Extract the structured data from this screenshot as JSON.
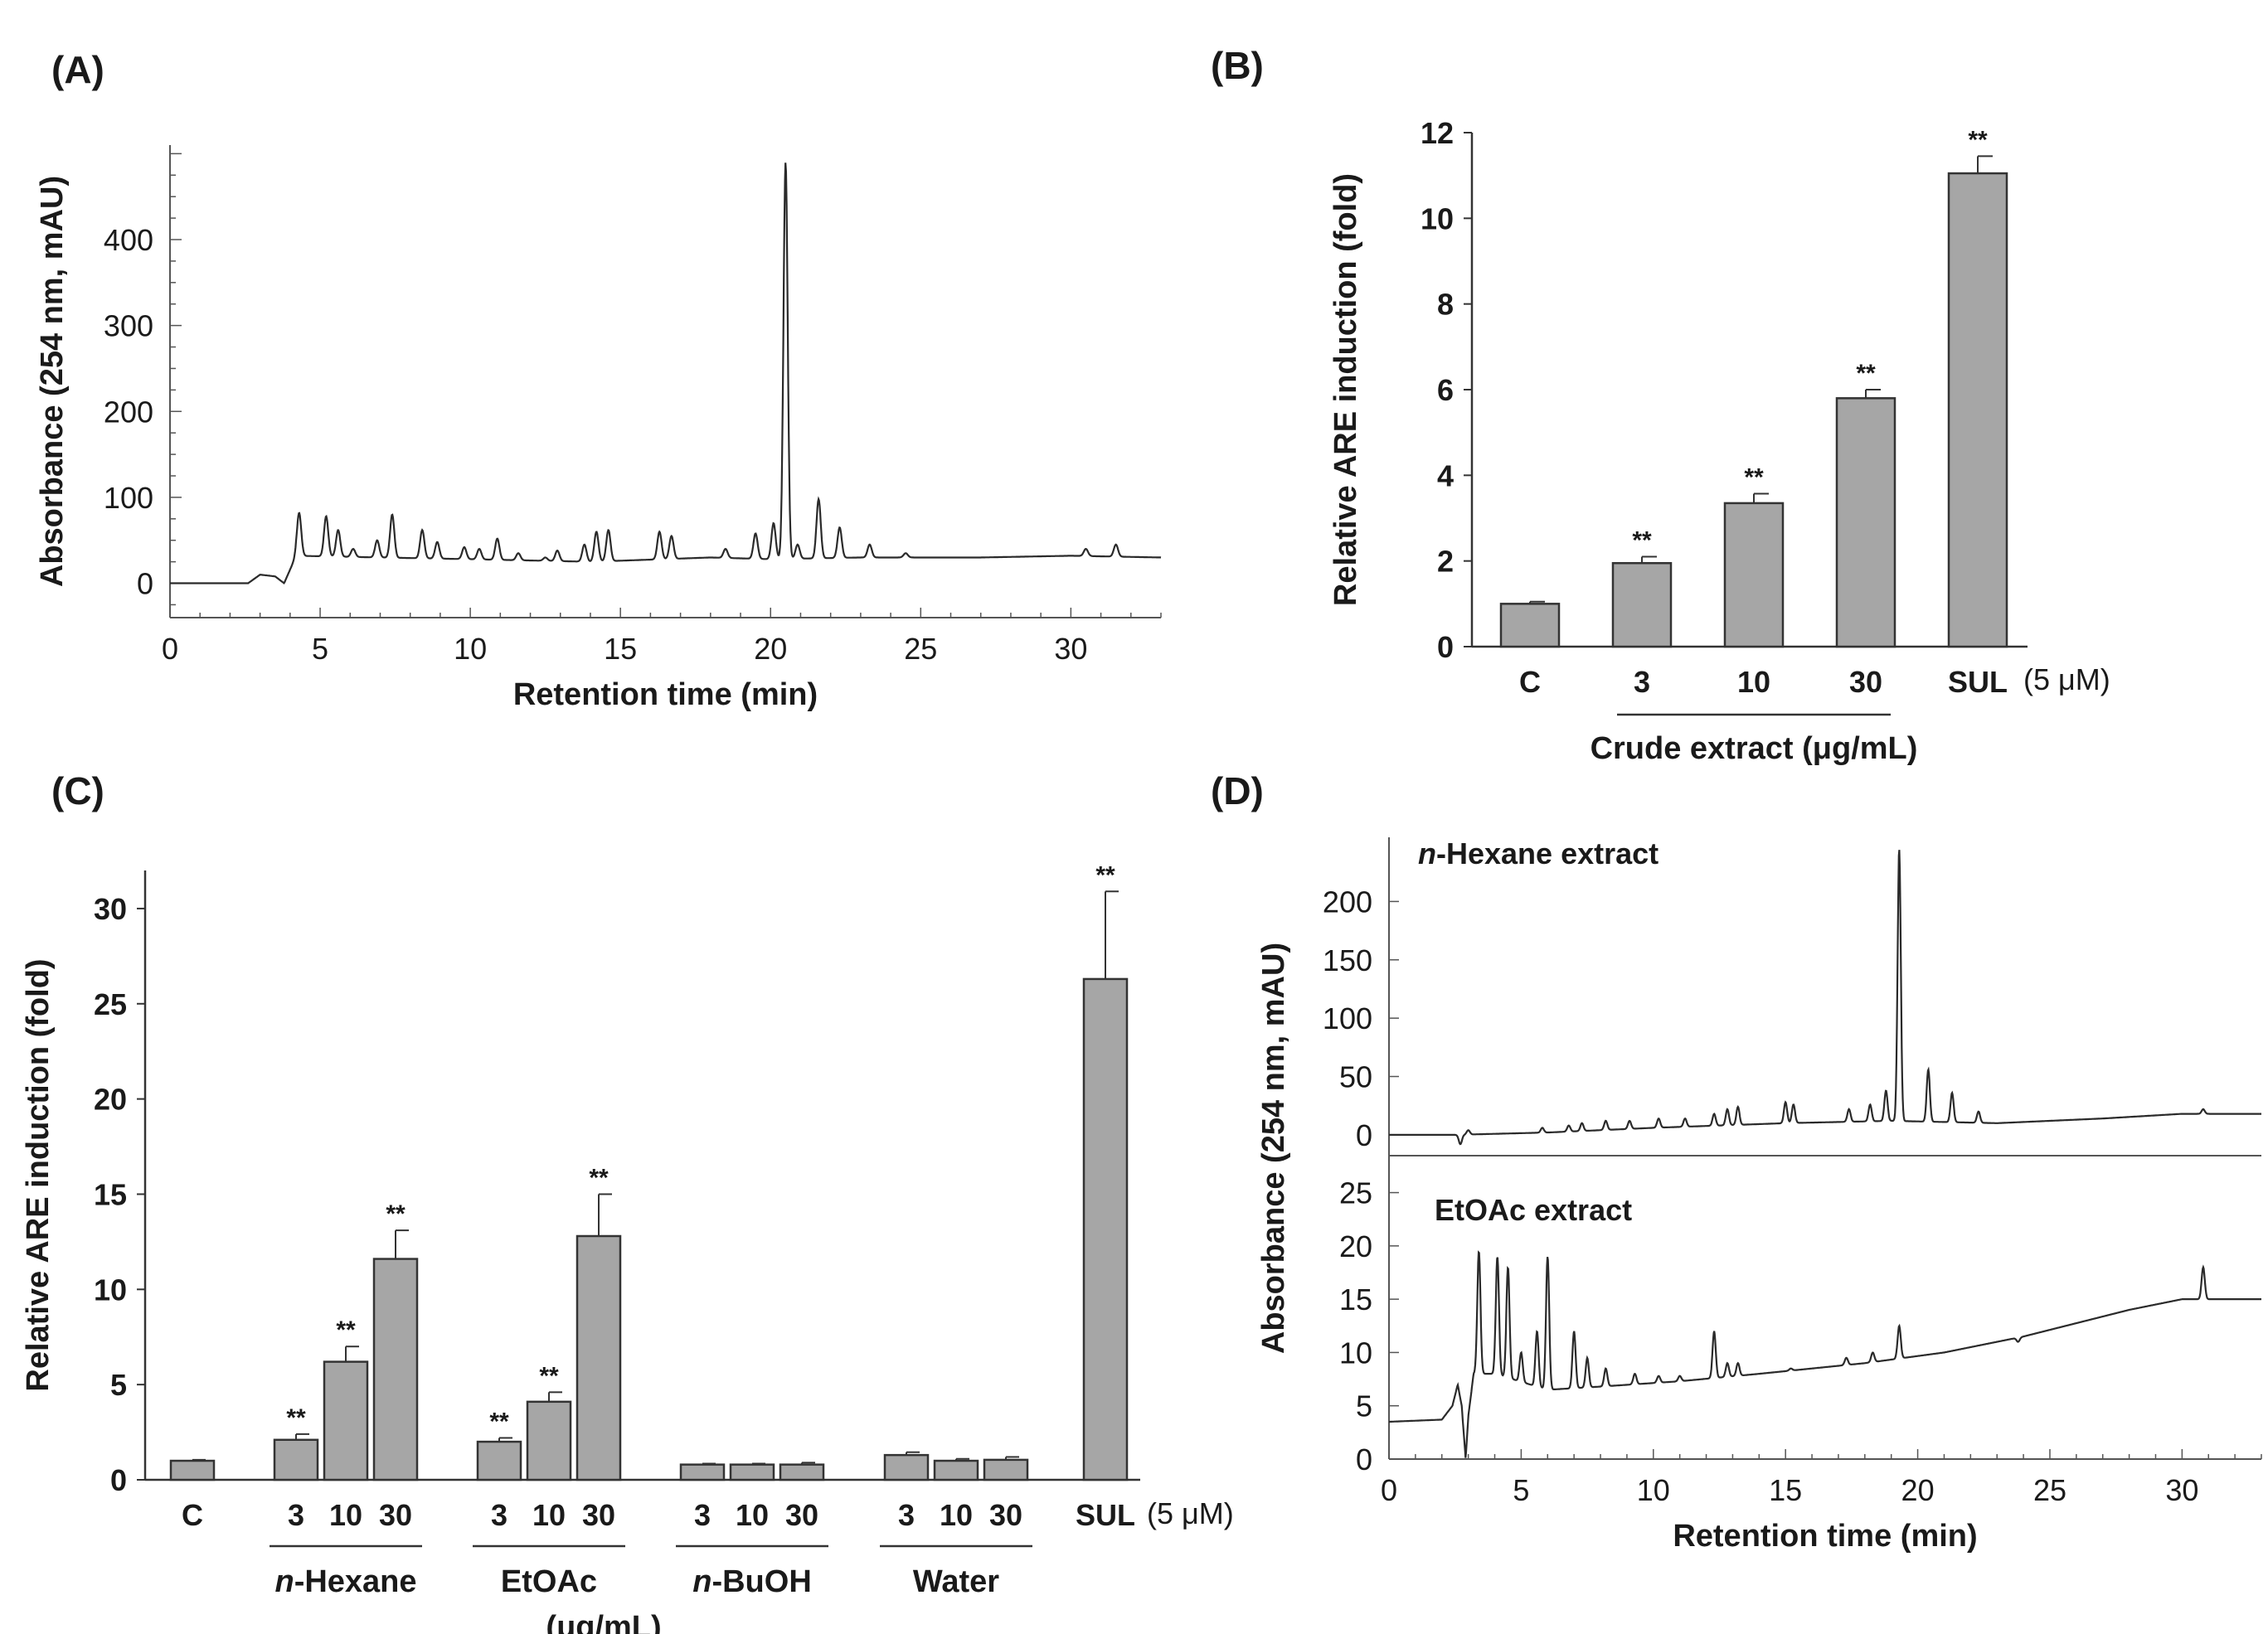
{
  "chart_data": [
    {
      "panel": "(A)",
      "type": "line",
      "xlabel": "Retention time (min)",
      "ylabel": "Absorbance (254 nm, mAU)",
      "xlim": [
        0,
        33
      ],
      "ylim": [
        -40,
        510
      ],
      "xticks": [
        0,
        5,
        10,
        15,
        20,
        25,
        30
      ],
      "yticks": [
        0,
        100,
        200,
        300,
        400
      ],
      "baseline": [
        [
          0,
          0
        ],
        [
          2.6,
          0
        ],
        [
          3.0,
          10
        ],
        [
          3.5,
          8
        ],
        [
          3.8,
          0
        ],
        [
          4.2,
          32
        ],
        [
          7,
          30
        ],
        [
          10,
          28
        ],
        [
          14,
          25
        ],
        [
          18,
          30
        ],
        [
          20,
          28
        ],
        [
          23,
          30
        ],
        [
          27,
          30
        ],
        [
          30,
          32
        ],
        [
          33,
          30
        ]
      ],
      "peaks": [
        {
          "x": 4.3,
          "y": 82
        },
        {
          "x": 5.2,
          "y": 78
        },
        {
          "x": 5.6,
          "y": 62
        },
        {
          "x": 6.1,
          "y": 40
        },
        {
          "x": 6.9,
          "y": 50
        },
        {
          "x": 7.4,
          "y": 80
        },
        {
          "x": 8.4,
          "y": 62
        },
        {
          "x": 8.9,
          "y": 48
        },
        {
          "x": 9.8,
          "y": 42
        },
        {
          "x": 10.3,
          "y": 40
        },
        {
          "x": 10.9,
          "y": 52
        },
        {
          "x": 11.6,
          "y": 35
        },
        {
          "x": 12.5,
          "y": 30
        },
        {
          "x": 12.9,
          "y": 38
        },
        {
          "x": 13.8,
          "y": 45
        },
        {
          "x": 14.2,
          "y": 60
        },
        {
          "x": 14.6,
          "y": 62
        },
        {
          "x": 16.3,
          "y": 60
        },
        {
          "x": 16.7,
          "y": 55
        },
        {
          "x": 18.5,
          "y": 40
        },
        {
          "x": 19.5,
          "y": 58
        },
        {
          "x": 20.1,
          "y": 70
        },
        {
          "x": 20.5,
          "y": 490
        },
        {
          "x": 20.9,
          "y": 45
        },
        {
          "x": 21.6,
          "y": 98
        },
        {
          "x": 22.3,
          "y": 65
        },
        {
          "x": 23.3,
          "y": 45
        },
        {
          "x": 24.5,
          "y": 35
        },
        {
          "x": 30.5,
          "y": 40
        },
        {
          "x": 31.5,
          "y": 45
        }
      ]
    },
    {
      "panel": "(B)",
      "type": "bar",
      "categories": [
        "C",
        "3",
        "10",
        "30",
        "SUL"
      ],
      "values": [
        1.0,
        1.95,
        3.35,
        5.8,
        11.05
      ],
      "errors": [
        0.05,
        0.15,
        0.22,
        0.2,
        0.4
      ],
      "significance": [
        "",
        "**",
        "**",
        "**",
        "**"
      ],
      "ylabel": "Relative ARE induction (fold)",
      "ylim": [
        0,
        12
      ],
      "yticks": [
        0,
        2,
        4,
        6,
        8,
        10,
        12
      ],
      "group_label": "Crude extract (μg/mL)",
      "sul_unit": "(5 μM)"
    },
    {
      "panel": "(C)",
      "type": "bar",
      "categories": [
        "C",
        "3",
        "10",
        "30",
        "3",
        "10",
        "30",
        "3",
        "10",
        "30",
        "3",
        "10",
        "30",
        "SUL"
      ],
      "values": [
        1.0,
        2.1,
        6.2,
        11.6,
        2.0,
        4.1,
        12.8,
        0.8,
        0.8,
        0.8,
        1.3,
        1.0,
        1.05,
        26.3
      ],
      "errors": [
        0.05,
        0.3,
        0.8,
        1.5,
        0.2,
        0.5,
        2.2,
        0.05,
        0.05,
        0.1,
        0.15,
        0.1,
        0.15,
        4.6
      ],
      "significance": [
        "",
        "**",
        "**",
        "**",
        "**",
        "**",
        "**",
        "",
        "",
        "",
        "",
        "",
        "",
        "**"
      ],
      "groups": [
        "n-Hexane",
        "EtOAc",
        "n-BuOH",
        "Water"
      ],
      "ylabel": "Relative ARE induction  (fold)",
      "ylim": [
        0,
        32
      ],
      "yticks": [
        0,
        5,
        10,
        15,
        20,
        25,
        30
      ],
      "unit_label": "(μg/mL)",
      "sul_unit": "(5 μM)"
    },
    {
      "panel": "(D)",
      "type": "line",
      "xlabel": "Retention time (min)",
      "ylabel": "Absorbance (254 nm, mAU)",
      "xlim": [
        0,
        33
      ],
      "xticks": [
        0,
        5,
        10,
        15,
        20,
        25,
        30
      ],
      "subplots": [
        {
          "name": "n-Hexane extract",
          "ylim": [
            -15,
            255
          ],
          "yticks": [
            0,
            50,
            100,
            150,
            200
          ],
          "baseline": [
            [
              0,
              0
            ],
            [
              2.5,
              0
            ],
            [
              6,
              2
            ],
            [
              10,
              6
            ],
            [
              15,
              10
            ],
            [
              19,
              12
            ],
            [
              23,
              10
            ],
            [
              27,
              14
            ],
            [
              30,
              18
            ],
            [
              33,
              18
            ]
          ],
          "peaks": [
            {
              "x": 2.7,
              "y": -8
            },
            {
              "x": 3.0,
              "y": 4
            },
            {
              "x": 5.8,
              "y": 6
            },
            {
              "x": 6.8,
              "y": 8
            },
            {
              "x": 7.3,
              "y": 10
            },
            {
              "x": 8.2,
              "y": 12
            },
            {
              "x": 9.1,
              "y": 12
            },
            {
              "x": 10.2,
              "y": 14
            },
            {
              "x": 11.2,
              "y": 14
            },
            {
              "x": 12.3,
              "y": 18
            },
            {
              "x": 12.8,
              "y": 22
            },
            {
              "x": 13.2,
              "y": 24
            },
            {
              "x": 15.0,
              "y": 28
            },
            {
              "x": 15.3,
              "y": 26
            },
            {
              "x": 17.4,
              "y": 22
            },
            {
              "x": 18.2,
              "y": 26
            },
            {
              "x": 18.8,
              "y": 38
            },
            {
              "x": 19.3,
              "y": 245
            },
            {
              "x": 20.4,
              "y": 56
            },
            {
              "x": 21.3,
              "y": 36
            },
            {
              "x": 22.3,
              "y": 20
            },
            {
              "x": 30.8,
              "y": 22
            }
          ]
        },
        {
          "name": "EtOAc extract",
          "ylim": [
            0,
            28
          ],
          "yticks": [
            0,
            5,
            10,
            15,
            20,
            25
          ],
          "baseline": [
            [
              0,
              3.5
            ],
            [
              2.0,
              3.7
            ],
            [
              2.4,
              5
            ],
            [
              2.6,
              7
            ],
            [
              2.75,
              5
            ],
            [
              2.9,
              0
            ],
            [
              3.0,
              4
            ],
            [
              3.2,
              8
            ],
            [
              4,
              8
            ],
            [
              6,
              6.5
            ],
            [
              8,
              6.8
            ],
            [
              11,
              7.3
            ],
            [
              14,
              8
            ],
            [
              18,
              9
            ],
            [
              21,
              10
            ],
            [
              24,
              11.5
            ],
            [
              28,
              14
            ],
            [
              30,
              15
            ],
            [
              33,
              15
            ]
          ],
          "peaks": [
            {
              "x": 3.4,
              "y": 19.5
            },
            {
              "x": 4.1,
              "y": 19
            },
            {
              "x": 4.5,
              "y": 18
            },
            {
              "x": 5.0,
              "y": 10
            },
            {
              "x": 5.6,
              "y": 12
            },
            {
              "x": 6.0,
              "y": 19
            },
            {
              "x": 7.0,
              "y": 12
            },
            {
              "x": 7.5,
              "y": 9.5
            },
            {
              "x": 8.2,
              "y": 8.5
            },
            {
              "x": 9.3,
              "y": 8
            },
            {
              "x": 10.2,
              "y": 7.8
            },
            {
              "x": 11.0,
              "y": 7.8
            },
            {
              "x": 12.3,
              "y": 12
            },
            {
              "x": 12.8,
              "y": 9
            },
            {
              "x": 13.2,
              "y": 9
            },
            {
              "x": 15.2,
              "y": 8.5
            },
            {
              "x": 17.3,
              "y": 9.5
            },
            {
              "x": 18.3,
              "y": 10
            },
            {
              "x": 19.3,
              "y": 12.5
            },
            {
              "x": 23.8,
              "y": 11
            },
            {
              "x": 30.8,
              "y": 18
            }
          ]
        }
      ]
    }
  ]
}
